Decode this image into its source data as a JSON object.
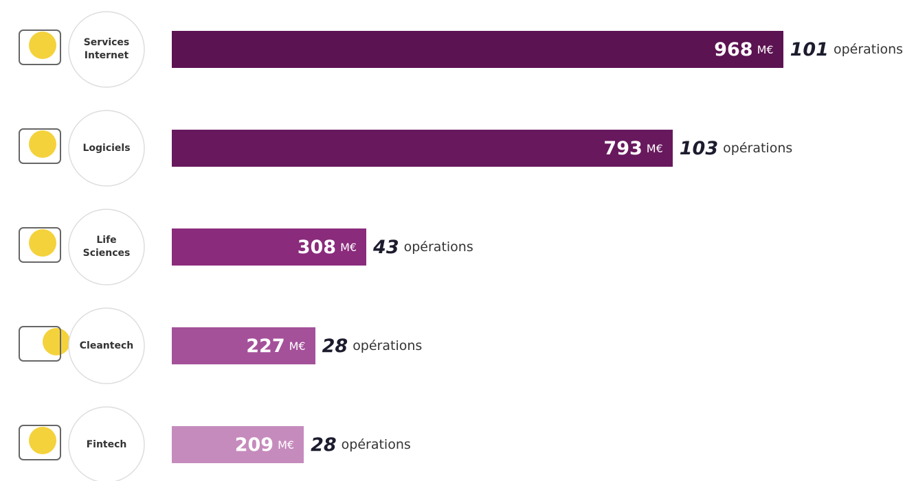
{
  "chart_data": {
    "type": "bar",
    "orientation": "horizontal",
    "categories": [
      "Services Internet",
      "Logiciels",
      "Life Sciences",
      "Cleantech",
      "Fintech"
    ],
    "values": [
      968,
      793,
      308,
      227,
      209
    ],
    "unit": "M€",
    "colors": [
      "#5c1352",
      "#68195d",
      "#8a2b7c",
      "#a4519a",
      "#c68bbd"
    ],
    "operations": [
      101,
      103,
      43,
      28,
      28
    ],
    "operations_label": "opérations",
    "xlim": [
      0,
      1000
    ]
  }
}
